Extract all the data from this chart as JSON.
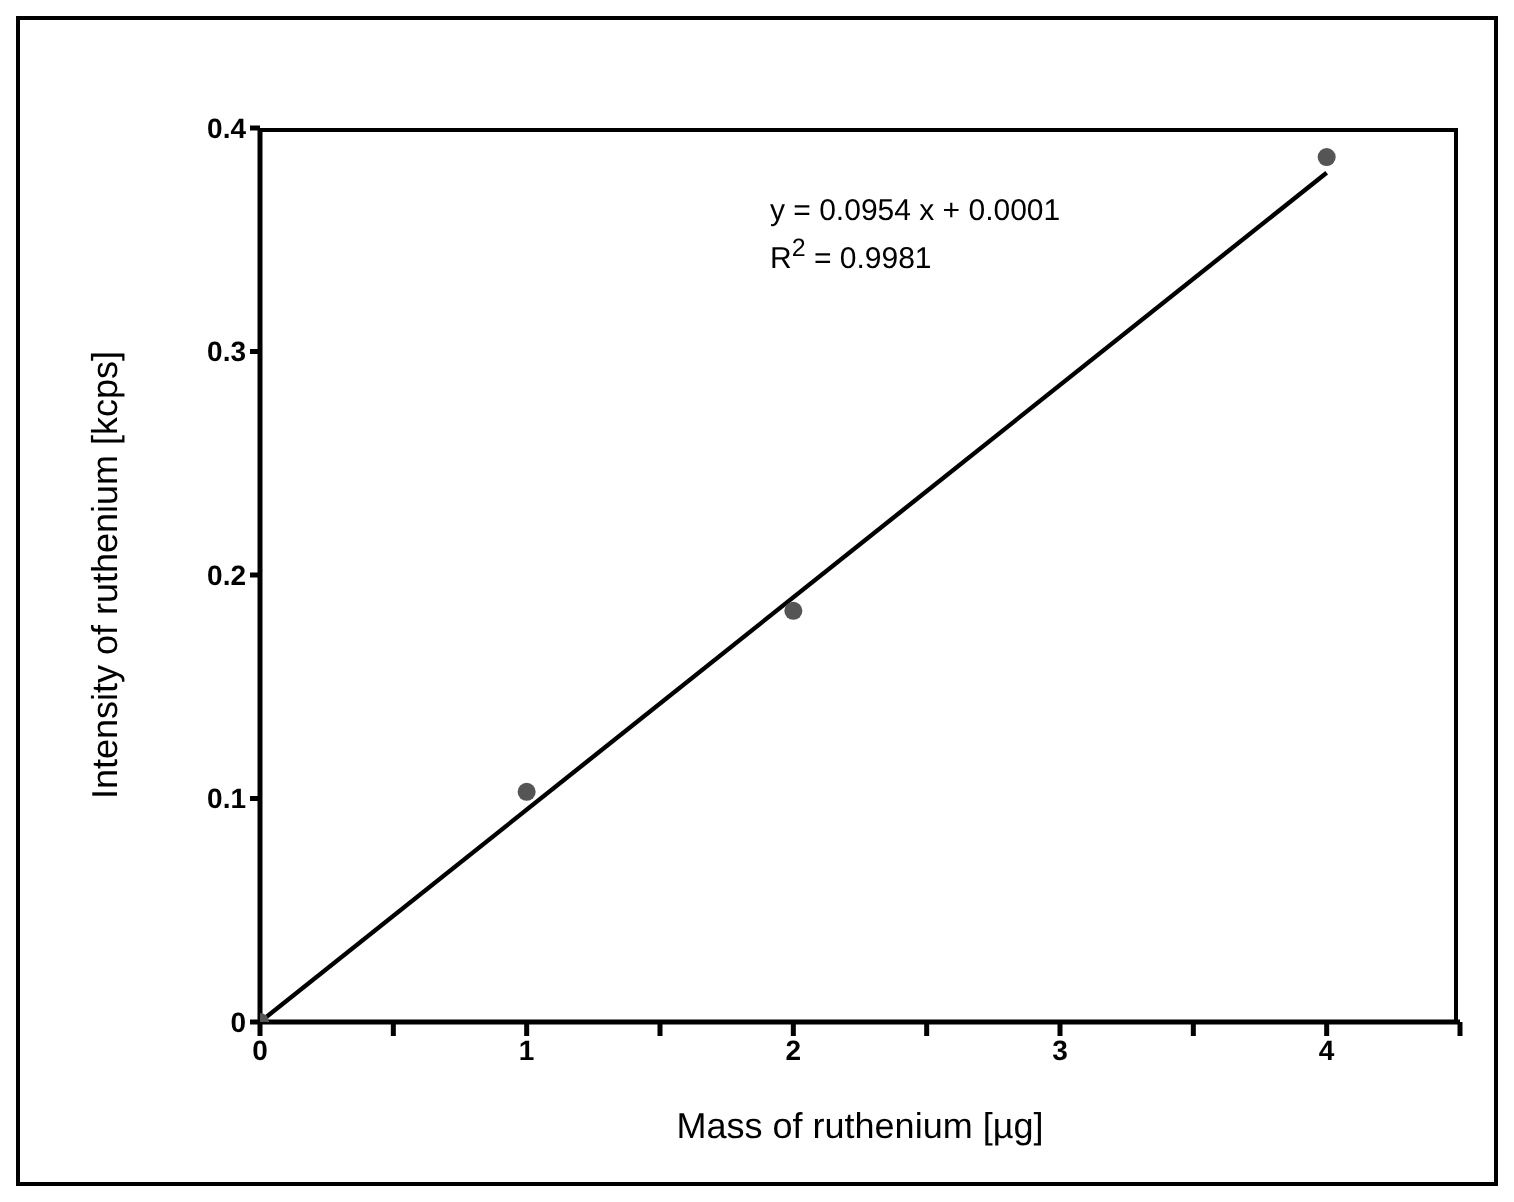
{
  "chart_data": {
    "type": "scatter",
    "xlabel": "Mass of ruthenium [µg]",
    "ylabel": "Intensity of ruthenium [kcps]",
    "annotations": [
      "y = 0.0954 x + 0.0001",
      "R$^{2}$ = 0.9981"
    ],
    "series": [
      {
        "color": "#555555",
        "x": [
          0,
          1,
          2,
          4
        ],
        "values": [
          0,
          0.103,
          0.184,
          0.387
        ],
        "marker": "circle"
      },
      {
        "type": "line",
        "color": "#000000",
        "x": [
          0,
          4
        ],
        "values": [
          0,
          0.38
        ],
        "marker": "none",
        "line_style": "solid"
      }
    ],
    "xlim": [
      0,
      4.5
    ],
    "xticks": [
      0,
      {
        "value": 0.5,
        "label": null
      },
      1,
      {
        "value": 1.5,
        "label": null
      },
      2,
      {
        "value": 2.5,
        "label": null
      },
      3,
      {
        "value": 3.5,
        "label": null
      },
      4,
      {
        "value": 4.5,
        "label": null
      }
    ],
    "ylim": [
      0,
      0.4
    ],
    "yticks": [
      0,
      0.1,
      0.2,
      0.3,
      0.4
    ],
    "grid": false,
    "legend": false
  }
}
